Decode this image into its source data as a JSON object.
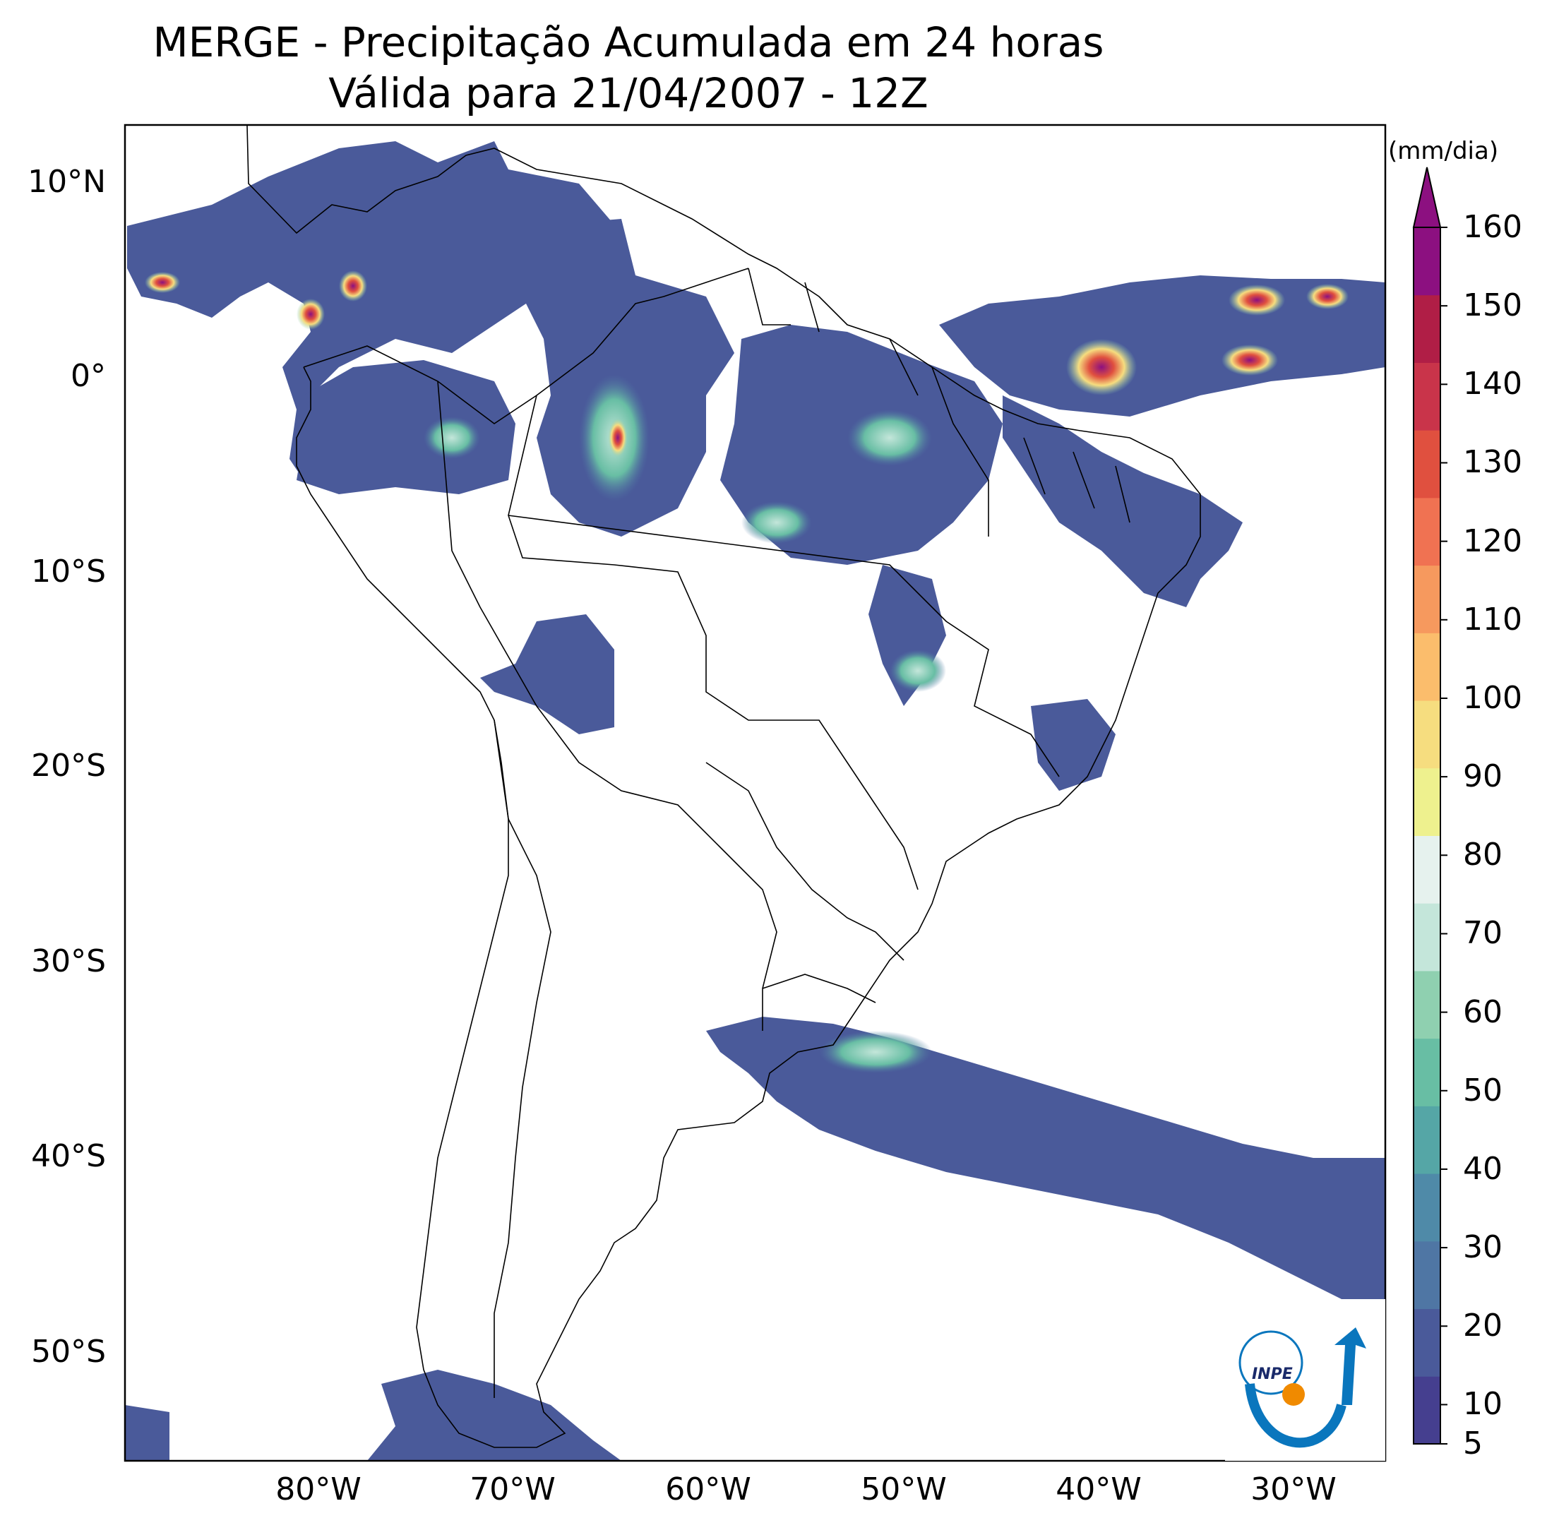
{
  "title": "MERGE - Precipitação Acumulada em 24 horas",
  "subtitle": "Válida para 21/04/2007 - 12Z",
  "lat_ticks": [
    "10°N",
    "0°",
    "10°S",
    "20°S",
    "30°S",
    "40°S",
    "50°S"
  ],
  "lon_ticks": [
    "80°W",
    "70°W",
    "60°W",
    "50°W",
    "40°W",
    "30°W"
  ],
  "colorbar": {
    "unit": "(mm/dia)",
    "ticks": [
      "5",
      "10",
      "20",
      "30",
      "40",
      "50",
      "60",
      "70",
      "80",
      "90",
      "100",
      "110",
      "120",
      "130",
      "140",
      "150",
      "160"
    ],
    "extend": "max",
    "colors": [
      "#453f8f",
      "#4a5a9a",
      "#4f76a4",
      "#4f8aa8",
      "#55a6a6",
      "#68bea4",
      "#8fd0b0",
      "#c4e6da",
      "#e6f2ee",
      "#eef18e",
      "#f6dd7f",
      "#fbbd6c",
      "#f6995e",
      "#f07252",
      "#e0503f",
      "#c9344a",
      "#b01e46",
      "#8c1080"
    ]
  },
  "logo": "INPE"
}
